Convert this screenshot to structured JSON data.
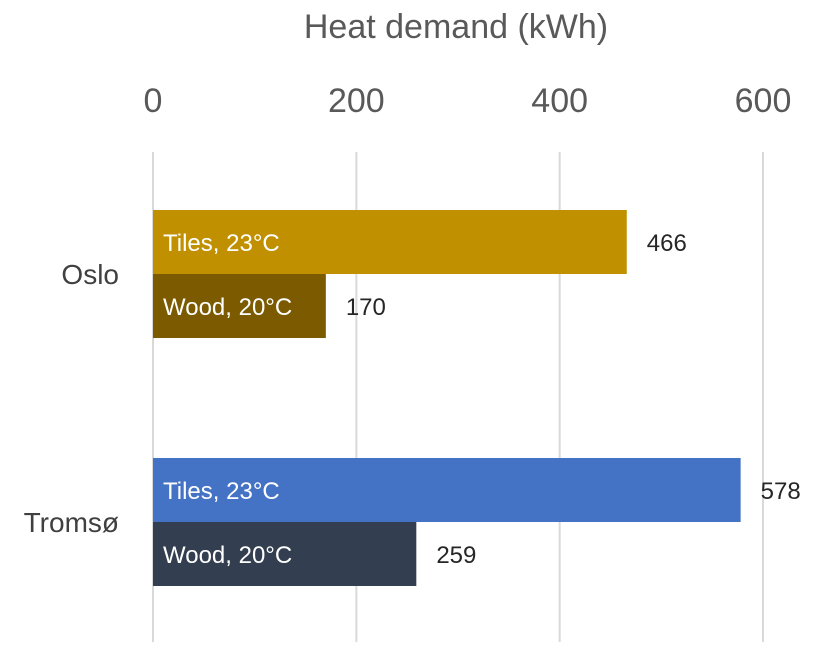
{
  "chart_data": {
    "type": "bar",
    "orientation": "horizontal",
    "xlabel": "Heat demand (kWh)",
    "xaxis_position": "top",
    "xlim": [
      0,
      600
    ],
    "xticks": [
      0,
      200,
      400,
      600
    ],
    "xtick_labels": [
      "0",
      "200",
      "400",
      "600"
    ],
    "grid": true,
    "legend": "none",
    "categories": [
      "Oslo",
      "Tromsø"
    ],
    "bars": [
      {
        "category": "Oslo",
        "label": "Tiles, 23°C",
        "value": 466,
        "value_label": "466",
        "color": "#c09000"
      },
      {
        "category": "Oslo",
        "label": "Wood, 20°C",
        "value": 170,
        "value_label": "170",
        "color": "#7b5a00"
      },
      {
        "category": "Tromsø",
        "label": "Tiles, 23°C",
        "value": 578,
        "value_label": "578",
        "color": "#4472c4"
      },
      {
        "category": "Tromsø",
        "label": "Wood, 20°C",
        "value": 259,
        "value_label": "259",
        "color": "#333f50"
      }
    ]
  }
}
